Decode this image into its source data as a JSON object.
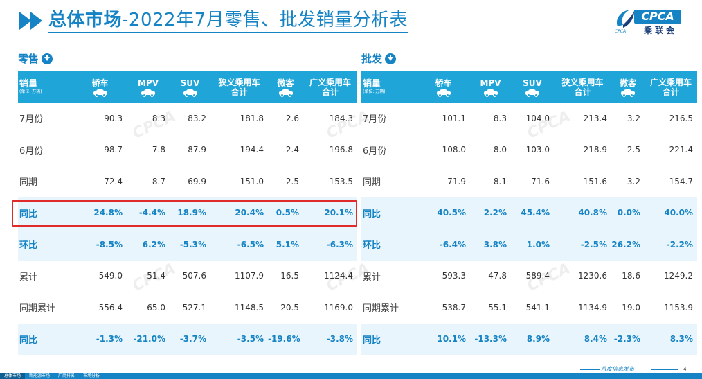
{
  "title": {
    "main": "总体市场",
    "rest": "-2022年7月零售、批发销量分析表"
  },
  "logo": {
    "text": "CPCA",
    "cn": "乘联会",
    "sub": "CPCA"
  },
  "retail": {
    "label": "零售",
    "headers": [
      {
        "label": "销量",
        "unit": "(单位: 万辆)"
      },
      {
        "label": "轿车",
        "icon": "sedan-icon"
      },
      {
        "label": "MPV",
        "icon": "mpv-icon"
      },
      {
        "label": "SUV",
        "icon": "suv-icon"
      },
      {
        "label": "狭义乘用车",
        "label2": "合计"
      },
      {
        "label": "微客",
        "icon": "minivan-icon"
      },
      {
        "label": "广义乘用车",
        "label2": "合计"
      }
    ],
    "rows": [
      {
        "name": "7月份",
        "v": [
          "90.3",
          "8.3",
          "83.2",
          "181.8",
          "2.6",
          "184.3"
        ]
      },
      {
        "name": "6月份",
        "v": [
          "98.7",
          "7.8",
          "87.9",
          "194.4",
          "2.4",
          "196.8"
        ]
      },
      {
        "name": "同期",
        "v": [
          "72.4",
          "8.7",
          "69.9",
          "151.0",
          "2.5",
          "153.5"
        ]
      },
      {
        "name": "同比",
        "v": [
          "24.8%",
          "-4.4%",
          "18.9%",
          "20.4%",
          "0.5%",
          "20.1%"
        ]
      },
      {
        "name": "环比",
        "v": [
          "-8.5%",
          "6.2%",
          "-5.3%",
          "-6.5%",
          "5.1%",
          "-6.3%"
        ]
      },
      {
        "name": "累计",
        "v": [
          "549.0",
          "51.4",
          "507.6",
          "1107.9",
          "16.5",
          "1124.4"
        ]
      },
      {
        "name": "同期累计",
        "v": [
          "556.4",
          "65.0",
          "527.1",
          "1148.5",
          "20.5",
          "1169.0"
        ]
      },
      {
        "name": "同比",
        "v": [
          "-1.3%",
          "-21.0%",
          "-3.7%",
          "-3.5%",
          "-19.6%",
          "-3.8%"
        ]
      }
    ]
  },
  "wholesale": {
    "label": "批发",
    "headers": [
      {
        "label": "销量",
        "unit": "(单位: 万辆)"
      },
      {
        "label": "轿车",
        "icon": "sedan-icon"
      },
      {
        "label": "MPV",
        "icon": "mpv-icon"
      },
      {
        "label": "SUV",
        "icon": "suv-icon"
      },
      {
        "label": "狭义乘用车",
        "label2": "合计"
      },
      {
        "label": "微客",
        "icon": "minivan-icon"
      },
      {
        "label": "广义乘用车",
        "label2": "合计"
      }
    ],
    "rows": [
      {
        "name": "7月份",
        "v": [
          "101.1",
          "8.3",
          "104.0",
          "213.4",
          "3.2",
          "216.5"
        ]
      },
      {
        "name": "6月份",
        "v": [
          "108.0",
          "8.0",
          "103.0",
          "218.9",
          "2.5",
          "221.4"
        ]
      },
      {
        "name": "同期",
        "v": [
          "71.9",
          "8.1",
          "71.6",
          "151.6",
          "3.2",
          "154.7"
        ]
      },
      {
        "name": "同比",
        "v": [
          "40.5%",
          "2.2%",
          "45.4%",
          "40.8%",
          "0.0%",
          "40.0%"
        ]
      },
      {
        "name": "环比",
        "v": [
          "-6.4%",
          "3.8%",
          "1.0%",
          "-2.5%",
          "26.2%",
          "-2.2%"
        ]
      },
      {
        "name": "累计",
        "v": [
          "593.3",
          "47.8",
          "589.4",
          "1230.6",
          "18.6",
          "1249.2"
        ]
      },
      {
        "name": "同期累计",
        "v": [
          "538.7",
          "55.1",
          "541.1",
          "1134.9",
          "19.0",
          "1153.9"
        ]
      },
      {
        "name": "同比",
        "v": [
          "10.1%",
          "-13.3%",
          "8.9%",
          "8.4%",
          "-2.3%",
          "8.3%"
        ]
      }
    ]
  },
  "footer": {
    "tabs": [
      "总体市场",
      "新能源市场",
      "厂商排名",
      "市场分析"
    ],
    "caption": "月度信息发布",
    "page": "4"
  },
  "colors": {
    "accent": "#1583c4",
    "header": "#1fa5d8",
    "highlight": "#e02b2b"
  }
}
